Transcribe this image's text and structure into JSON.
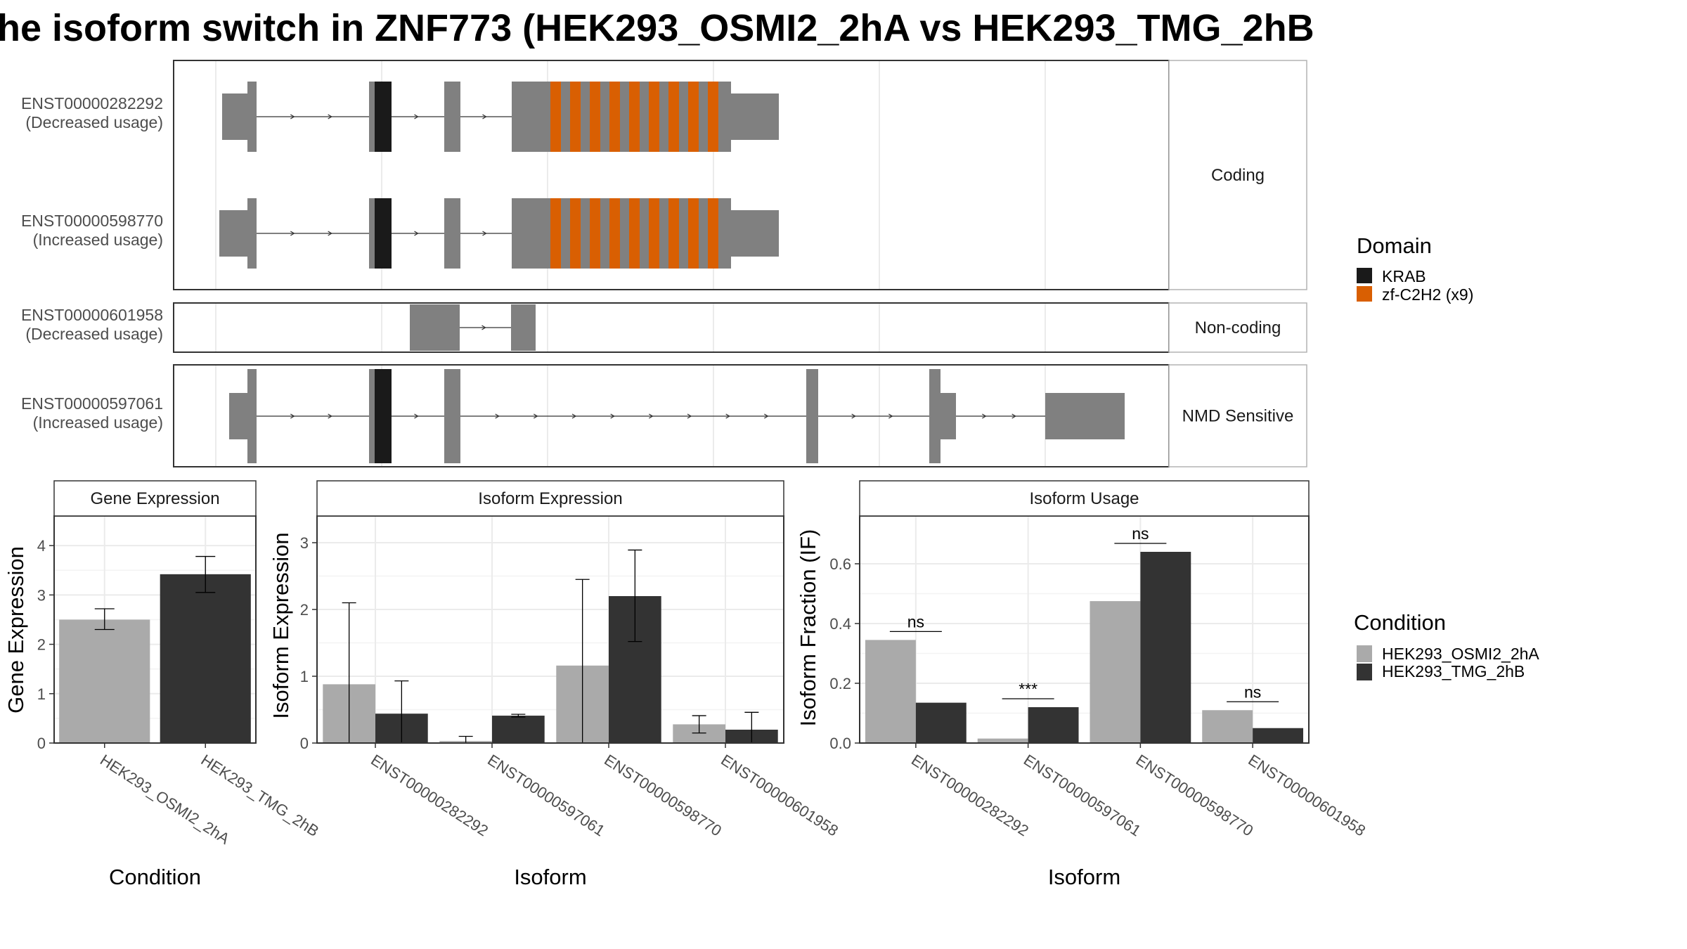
{
  "title": "he isoform switch in ZNF773 (HEK293_OSMI2_2hA vs HEK293_TMG_2hB",
  "colors": {
    "exon": "#808080",
    "KRAB": "#1a1a1a",
    "zf": "#d95f02",
    "cond_A": "#aaaaaa",
    "cond_B": "#333333",
    "panel_border": "#333333",
    "strip_border": "#b3b3b3",
    "grid": "#ebebeb"
  },
  "transcripts": {
    "strips": [
      "Coding",
      "Non-coding",
      "NMD Sensitive"
    ],
    "rows": [
      {
        "id": "ENST00000282292",
        "usage": "(Decreased usage)",
        "group": "Coding"
      },
      {
        "id": "ENST00000598770",
        "usage": "(Increased usage)",
        "group": "Coding"
      },
      {
        "id": "ENST00000601958",
        "usage": "(Decreased usage)",
        "group": "Non-coding"
      },
      {
        "id": "ENST00000597061",
        "usage": "(Increased usage)",
        "group": "NMD Sensitive"
      }
    ]
  },
  "legend_domain": {
    "title": "Domain",
    "items": [
      {
        "label": "KRAB",
        "color": "#1a1a1a"
      },
      {
        "label": "zf-C2H2 (x9)",
        "color": "#d95f02"
      }
    ]
  },
  "legend_condition": {
    "title": "Condition",
    "items": [
      {
        "label": "HEK293_OSMI2_2hA",
        "color": "#aaaaaa"
      },
      {
        "label": "HEK293_TMG_2hB",
        "color": "#333333"
      }
    ]
  },
  "chart_data": [
    {
      "type": "bar",
      "title": "Gene Expression",
      "xlabel": "Condition",
      "ylabel": "Gene Expression",
      "ylim": [
        0,
        4.6
      ],
      "yticks": [
        0,
        1,
        2,
        3,
        4
      ],
      "categories": [
        "HEK293_OSMI2_2hA",
        "HEK293_TMG_2hB"
      ],
      "values": [
        2.5,
        3.42
      ],
      "error": [
        [
          2.3,
          2.72
        ],
        [
          3.05,
          3.78
        ]
      ]
    },
    {
      "type": "bar",
      "title": "Isoform Expression",
      "xlabel": "Isoform",
      "ylabel": "Isoform Expression",
      "ylim": [
        0,
        3.4
      ],
      "yticks": [
        0,
        1,
        2,
        3
      ],
      "categories": [
        "ENST00000282292",
        "ENST00000597061",
        "ENST00000598770",
        "ENST00000601958"
      ],
      "series": [
        {
          "name": "HEK293_OSMI2_2hA",
          "values": [
            0.88,
            0.03,
            1.16,
            0.28
          ],
          "error": [
            [
              0.0,
              2.1
            ],
            [
              0.0,
              0.1
            ],
            [
              0.0,
              2.45
            ],
            [
              0.15,
              0.41
            ]
          ]
        },
        {
          "name": "HEK293_TMG_2hB",
          "values": [
            0.44,
            0.41,
            2.2,
            0.2
          ],
          "error": [
            [
              0.0,
              0.93
            ],
            [
              0.39,
              0.43
            ],
            [
              1.52,
              2.89
            ],
            [
              0.0,
              0.46
            ]
          ]
        }
      ]
    },
    {
      "type": "bar",
      "title": "Isoform Usage",
      "xlabel": "Isoform",
      "ylabel": "Isoform Fraction (IF)",
      "ylim": [
        0,
        0.76
      ],
      "yticks": [
        0.0,
        0.2,
        0.4,
        0.6
      ],
      "ytick_labels": [
        "0.0",
        "0.2",
        "0.4",
        "0.6"
      ],
      "categories": [
        "ENST00000282292",
        "ENST00000597061",
        "ENST00000598770",
        "ENST00000601958"
      ],
      "series": [
        {
          "name": "HEK293_OSMI2_2hA",
          "values": [
            0.345,
            0.015,
            0.475,
            0.11
          ]
        },
        {
          "name": "HEK293_TMG_2hB",
          "values": [
            0.135,
            0.12,
            0.64,
            0.05
          ]
        }
      ],
      "significance": [
        "ns",
        "***",
        "ns",
        "ns"
      ]
    }
  ]
}
